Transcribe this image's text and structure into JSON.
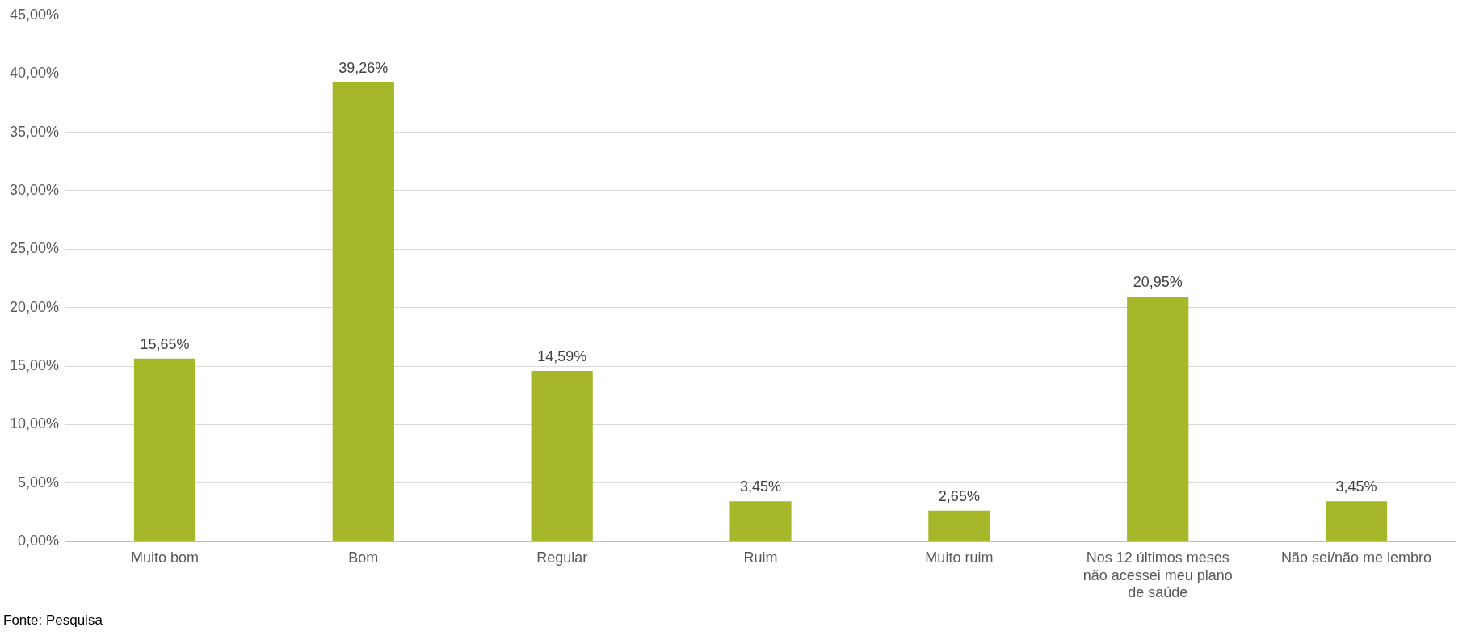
{
  "chart_data": {
    "type": "bar",
    "categories": [
      "Muito bom",
      "Bom",
      "Regular",
      "Ruim",
      "Muito ruim",
      "Nos 12 últimos meses não acessei meu plano de saúde",
      "Não sei/não me lembro"
    ],
    "values": [
      15.65,
      39.26,
      14.59,
      3.45,
      2.65,
      20.95,
      3.45
    ],
    "value_labels": [
      "15,65%",
      "39,26%",
      "14,59%",
      "3,45%",
      "2,65%",
      "20,95%",
      "3,45%"
    ],
    "color": "#a6b72a",
    "ylim": [
      0,
      45
    ],
    "yticks": [
      {
        "value": 0,
        "label": "0,00%"
      },
      {
        "value": 5,
        "label": "5,00%"
      },
      {
        "value": 10,
        "label": "10,00%"
      },
      {
        "value": 15,
        "label": "15,00%"
      },
      {
        "value": 20,
        "label": "20,00%"
      },
      {
        "value": 25,
        "label": "25,00%"
      },
      {
        "value": 30,
        "label": "30,00%"
      },
      {
        "value": 35,
        "label": "35,00%"
      },
      {
        "value": 40,
        "label": "40,00%"
      },
      {
        "value": 45,
        "label": "45,00%"
      }
    ],
    "grid": "y",
    "legend": false,
    "annotations": [
      "Fonte: Pesquisa"
    ]
  }
}
